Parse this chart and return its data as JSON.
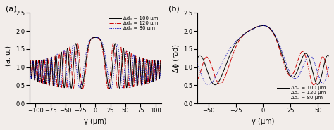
{
  "panel_a": {
    "label": "(a)",
    "xlabel": "γ (μm)",
    "ylabel": "I (a. u.)",
    "xlim": [
      -110,
      110
    ],
    "ylim": [
      0.0,
      2.5
    ],
    "yticks": [
      0.0,
      0.5,
      1.0,
      1.5,
      2.0,
      2.5
    ],
    "xticks": [
      -100,
      -75,
      -50,
      -25,
      0,
      25,
      50,
      75,
      100
    ]
  },
  "panel_b": {
    "label": "(b)",
    "xlabel": "γ (μm)",
    "ylabel": "Δϕ (rad)",
    "xlim": [
      -60,
      60
    ],
    "ylim": [
      0.0,
      2.5
    ],
    "yticks": [
      0.0,
      0.5,
      1.0,
      1.5,
      2.0,
      2.5
    ],
    "xticks": [
      -50,
      -25,
      0,
      25,
      50
    ]
  },
  "legend": {
    "d100": "Δdₒ = 100 μm",
    "d120": "Δdₒ = 120 μm",
    "d80": "Δdₒ = 80 μm"
  },
  "colors": {
    "black": "#000000",
    "red": "#cc0000",
    "blue": "#0000bb"
  },
  "background": "#f2edea",
  "legend_a_loc": "upper right",
  "legend_b_loc": "lower right"
}
